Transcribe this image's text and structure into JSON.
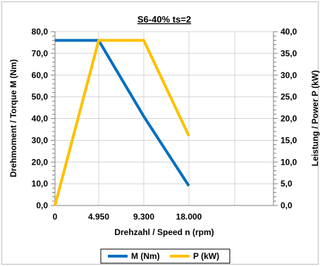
{
  "chart_data": {
    "type": "line",
    "title": "S6-40% ts=2",
    "xlabel": "Drehzahl / Speed n (rpm)",
    "ylabel_left": "Drehmoment / Torque M (Nm)",
    "ylabel_right": "Leistung / Power P (kW)",
    "x_tick_labels": [
      "0",
      "4.950",
      "9.300",
      "18.000"
    ],
    "x_tick_values": [
      0,
      4950,
      9300,
      18000
    ],
    "ylim_left": [
      0,
      80
    ],
    "ylim_right": [
      0,
      40
    ],
    "y_left_ticks": [
      "0,0",
      "10,0",
      "20,0",
      "30,0",
      "40,0",
      "50,0",
      "60,0",
      "70,0",
      "80,0"
    ],
    "y_right_ticks": [
      "0,0",
      "5,0",
      "10,0",
      "15,0",
      "20,0",
      "25,0",
      "30,0",
      "35,0",
      "40,0"
    ],
    "grid": true,
    "legend_position": "bottom",
    "series": [
      {
        "name": "M (Nm)",
        "axis": "left",
        "color": "#0070c0",
        "points": [
          [
            0,
            76
          ],
          [
            4950,
            76
          ],
          [
            9300,
            41
          ],
          [
            18000,
            9
          ]
        ]
      },
      {
        "name": "P (kW)",
        "axis": "right",
        "color": "#ffc000",
        "points": [
          [
            0,
            0
          ],
          [
            4950,
            38
          ],
          [
            9300,
            38
          ],
          [
            18000,
            16
          ]
        ]
      }
    ]
  }
}
